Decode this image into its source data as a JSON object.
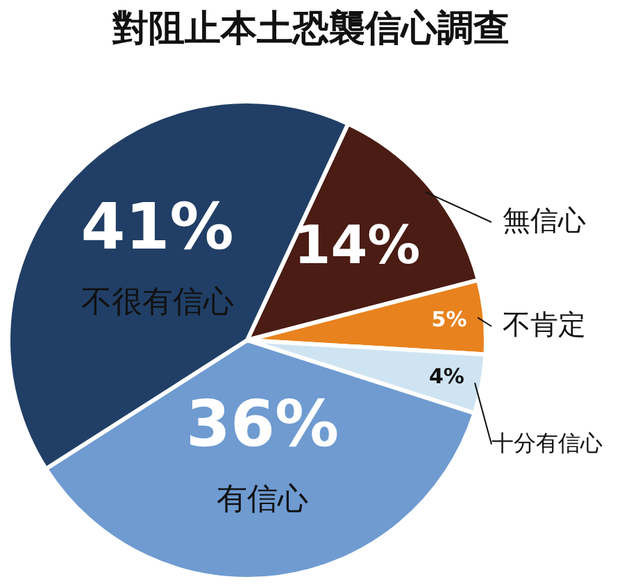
{
  "chart_data": {
    "type": "pie",
    "title": "對阻止本土恐襲信心調查",
    "categories": [
      "無信心",
      "不肯定",
      "十分有信心",
      "有信心",
      "不很有信心"
    ],
    "values": [
      14,
      5,
      4,
      36,
      41
    ],
    "value_labels": [
      "14%",
      "5%",
      "4%",
      "36%",
      "41%"
    ],
    "colors": [
      "#4a1c14",
      "#e8821e",
      "#cfe4f2",
      "#6f9bd1",
      "#213f66"
    ],
    "legend": false
  }
}
